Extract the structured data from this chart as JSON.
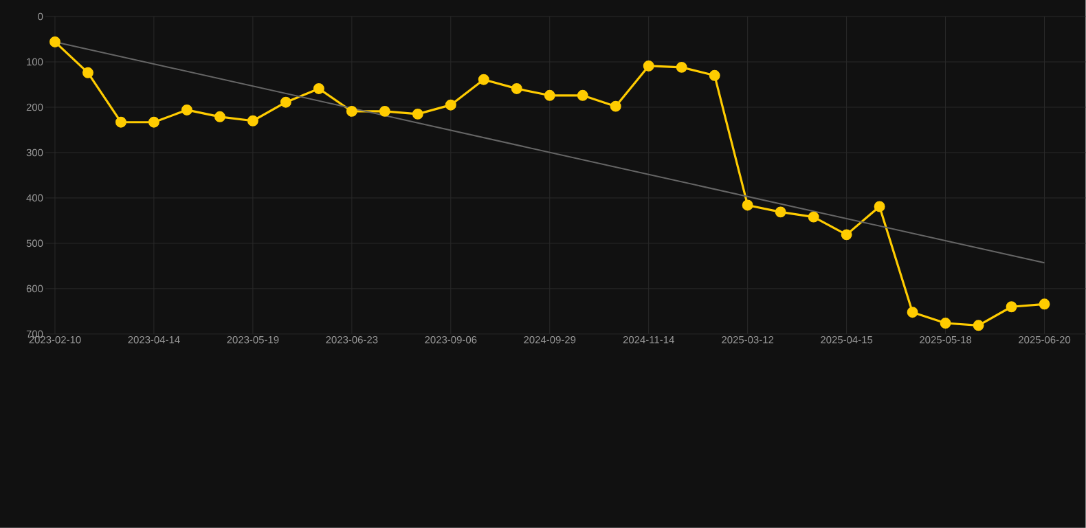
{
  "chart_data": {
    "type": "line",
    "categories": [
      "2023-02-10",
      null,
      null,
      "2023-04-14",
      null,
      null,
      "2023-05-19",
      null,
      null,
      "2023-06-23",
      null,
      null,
      "2023-09-06",
      null,
      null,
      "2024-09-29",
      null,
      null,
      "2024-11-14",
      null,
      null,
      "2025-03-12",
      null,
      null,
      "2025-04-15",
      null,
      null,
      "2025-05-18",
      null,
      null,
      "2025-06-20"
    ],
    "series": [
      {
        "color": "#ffcc00",
        "marker": "circle",
        "values": [
          56,
          124,
          233,
          233,
          206,
          221,
          230,
          189,
          159,
          209,
          209,
          215,
          195,
          139,
          159,
          174,
          174,
          198,
          109,
          112,
          130,
          416,
          431,
          442,
          481,
          419,
          652,
          676,
          681,
          640,
          634
        ]
      },
      {
        "type": "line",
        "color": "#666666",
        "marker": "none",
        "values": [
          56,
          null,
          null,
          null,
          null,
          null,
          null,
          null,
          null,
          null,
          null,
          null,
          null,
          null,
          null,
          null,
          null,
          null,
          null,
          null,
          null,
          null,
          null,
          null,
          null,
          null,
          null,
          null,
          null,
          null,
          543
        ]
      }
    ],
    "ylim": [
      700,
      0
    ],
    "yticks": [
      0,
      100,
      200,
      300,
      400,
      500,
      600,
      700
    ],
    "grid": true
  }
}
